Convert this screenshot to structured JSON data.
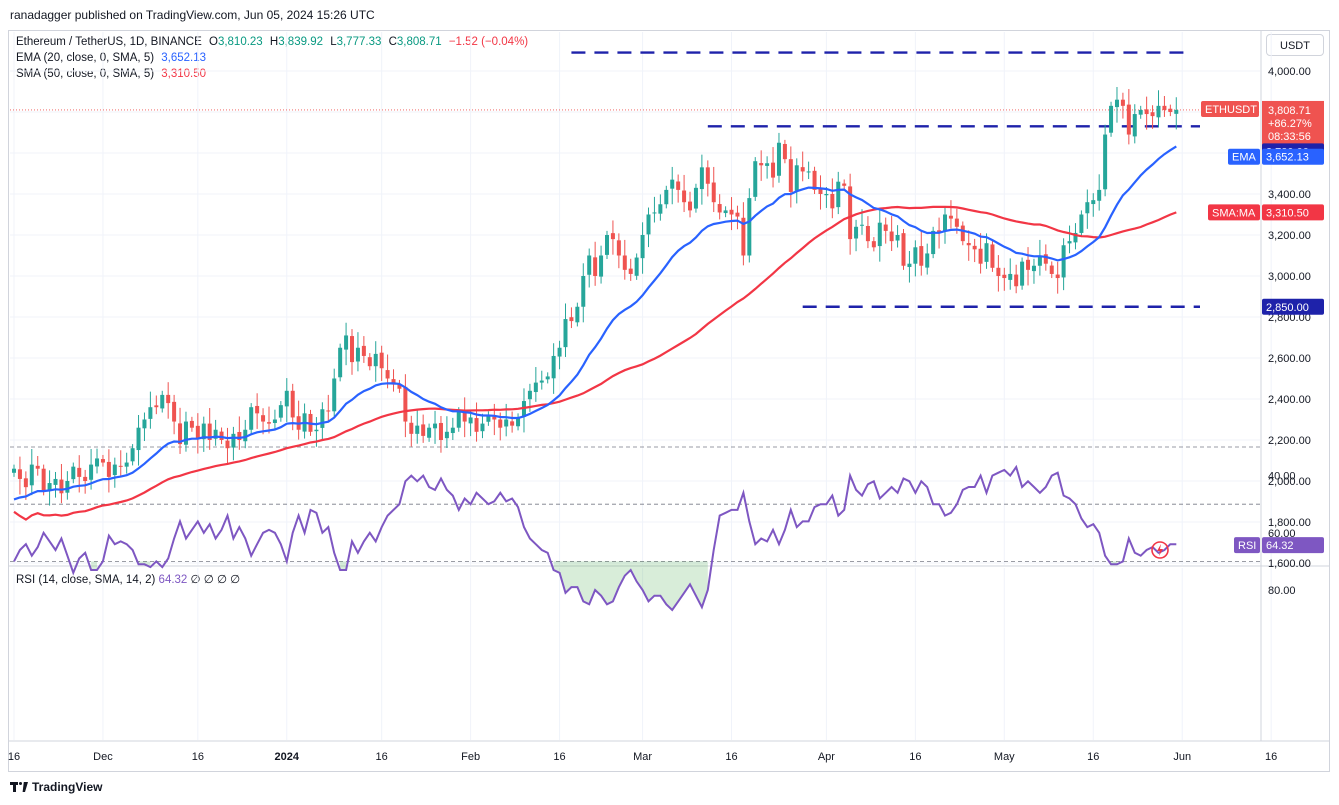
{
  "header": {
    "publisher": "ranadagger published on TradingView.com, Jun 05, 2024 15:26 UTC",
    "unit_button": "USDT"
  },
  "legend": {
    "symbol": "Ethereum / TetherUS, 1D, BINANCE",
    "open_label": "O",
    "open": "3,810.23",
    "high_label": "H",
    "high": "3,839.92",
    "low_label": "L",
    "low": "3,777.33",
    "close_label": "C",
    "close": "3,808.71",
    "change": "−1.52 (−0.04%)",
    "ema_label": "EMA (20, close, 0, SMA, 5)",
    "ema_value": "3,652.13",
    "sma_label": "SMA (50, close, 0, SMA, 5)",
    "sma_value": "3,310.50",
    "rsi_label": "RSI (14, close, SMA, 14, 2)",
    "rsi_value": "64.32",
    "rsi_extra": "∅ ∅ ∅ ∅"
  },
  "price_tags": {
    "symbol_tag": "ETHUSDT",
    "last_price": "3,808.71",
    "change_pct": "+86.27%",
    "countdown": "08:33:56",
    "resistance_tag": "3,730.00",
    "ema_tag": "EMA",
    "ema_price": "3,652.13",
    "sma_tag": "SMA:MA",
    "sma_price": "3,310.50",
    "support_tag": "2,850.00",
    "rsi_tag": "RSI",
    "rsi_price": "64.32"
  },
  "footer": {
    "brand": "TradingView"
  },
  "colors": {
    "up": "#26a69a",
    "down": "#ef5350",
    "ema": "#2962ff",
    "sma": "#f23645",
    "rsi": "#7e57c2",
    "level_line": "#1e22aa",
    "axis_text": "#131722",
    "grid": "#f0f3fa"
  },
  "chart_data": [
    {
      "type": "candlestick",
      "title": "Ethereum / TetherUS, 1D, BINANCE",
      "ylim": [
        1600,
        4200
      ],
      "y_ticks": [
        1600,
        1800,
        2000,
        2200,
        2400,
        2600,
        2800,
        3000,
        3200,
        3400,
        3600,
        3800,
        4000
      ],
      "y_tick_labels": [
        "1,600.00",
        "1,800.00",
        "2,000.00",
        "2,200.00",
        "2,400.00",
        "2,600.00",
        "2,800.00",
        "3,000.00",
        "3,200.00",
        "3,400.00",
        "3,600.00",
        "3,800.00",
        "4,000.00"
      ],
      "x_ticks": [
        0,
        15,
        31,
        46,
        62,
        77,
        92,
        106,
        121,
        137,
        152,
        167,
        182,
        197,
        212
      ],
      "x_tick_labels": [
        "16",
        "Dec",
        "16",
        "2024",
        "16",
        "Feb",
        "16",
        "Mar",
        "16",
        "Apr",
        "16",
        "May",
        "16",
        "Jun",
        "16"
      ],
      "x_tick_bold": [
        false,
        false,
        false,
        true,
        false,
        false,
        false,
        false,
        false,
        false,
        false,
        false,
        false,
        false,
        false
      ],
      "levels": [
        {
          "value": 4090,
          "from": 94,
          "to": 198
        },
        {
          "value": 3730,
          "from": 117,
          "to": 200
        },
        {
          "value": 2850,
          "from": 133,
          "to": 200
        }
      ],
      "close": [
        2060,
        2010,
        1970,
        2080,
        2060,
        1950,
        1990,
        2010,
        1940,
        2000,
        2070,
        2020,
        2000,
        2080,
        2110,
        2090,
        2020,
        2080,
        2070,
        2090,
        2160,
        2260,
        2300,
        2360,
        2360,
        2420,
        2380,
        2290,
        2180,
        2290,
        2260,
        2210,
        2280,
        2200,
        2250,
        2200,
        2160,
        2230,
        2200,
        2250,
        2360,
        2330,
        2290,
        2280,
        2300,
        2370,
        2440,
        2310,
        2250,
        2330,
        2240,
        2250,
        2350,
        2340,
        2500,
        2650,
        2710,
        2580,
        2650,
        2610,
        2560,
        2620,
        2550,
        2500,
        2470,
        2450,
        2290,
        2230,
        2270,
        2220,
        2260,
        2280,
        2200,
        2240,
        2260,
        2340,
        2290,
        2310,
        2240,
        2280,
        2320,
        2300,
        2260,
        2300,
        2270,
        2310,
        2390,
        2440,
        2480,
        2490,
        2510,
        2610,
        2650,
        2790,
        2780,
        2850,
        3000,
        3100,
        3000,
        3100,
        3200,
        3180,
        3100,
        3030,
        3010,
        3090,
        3200,
        3300,
        3310,
        3350,
        3420,
        3470,
        3420,
        3360,
        3320,
        3430,
        3530,
        3450,
        3360,
        3310,
        3320,
        3300,
        3290,
        3100,
        3380,
        3560,
        3540,
        3550,
        3480,
        3650,
        3570,
        3410,
        3540,
        3510,
        3510,
        3420,
        3400,
        3400,
        3330,
        3460,
        3440,
        3180,
        3240,
        3250,
        3170,
        3140,
        3260,
        3220,
        3170,
        3200,
        3050,
        3060,
        3140,
        3050,
        3110,
        3220,
        3210,
        3300,
        3280,
        3240,
        3170,
        3150,
        3130,
        3060,
        3160,
        3040,
        3000,
        2990,
        3010,
        2950,
        3070,
        3030,
        3050,
        3100,
        3060,
        3010,
        2990,
        3150,
        3170,
        3210,
        3300,
        3360,
        3370,
        3420,
        3690,
        3830,
        3860,
        3830,
        3690,
        3790,
        3810,
        3790,
        3780,
        3830,
        3810,
        3800,
        3810
      ],
      "rsi": [
        70,
        66,
        64,
        68,
        65,
        60,
        63,
        66,
        62,
        68,
        74,
        69,
        67,
        73,
        73,
        70,
        61,
        64,
        63,
        64,
        66,
        71,
        71,
        72,
        70,
        72,
        69,
        62,
        56,
        62,
        59,
        56,
        60,
        57,
        62,
        59,
        54,
        62,
        58,
        62,
        68,
        64,
        60,
        59,
        60,
        64,
        70,
        60,
        54,
        60,
        52,
        53,
        60,
        58,
        67,
        73,
        73,
        63,
        67,
        63,
        60,
        63,
        58,
        54,
        52,
        50,
        42,
        40,
        42,
        40,
        44,
        45,
        41,
        45,
        47,
        52,
        48,
        50,
        46,
        48,
        50,
        49,
        46,
        49,
        48,
        51,
        58,
        62,
        64,
        66,
        67,
        73,
        74,
        81,
        79,
        79,
        84,
        85,
        80,
        82,
        85,
        84,
        79,
        75,
        73,
        77,
        80,
        84,
        82,
        82,
        85,
        87,
        84,
        81,
        78,
        82,
        86,
        80,
        66,
        54,
        53,
        52,
        52,
        46,
        56,
        64,
        62,
        63,
        59,
        64,
        59,
        52,
        58,
        56,
        56,
        51,
        50,
        50,
        47,
        54,
        52,
        40,
        45,
        47,
        43,
        42,
        48,
        46,
        44,
        46,
        41,
        42,
        46,
        42,
        44,
        50,
        50,
        54,
        53,
        50,
        45,
        44,
        44,
        40,
        46,
        40,
        39,
        38,
        40,
        37,
        44,
        42,
        44,
        46,
        44,
        40,
        39,
        47,
        48,
        50,
        55,
        58,
        57,
        60,
        68,
        71,
        71,
        70,
        62,
        67,
        68,
        66,
        65,
        67,
        66,
        64,
        64
      ]
    },
    {
      "type": "line",
      "title": "RSI (14, close, SMA, 14, 2)",
      "ylim": [
        28,
        88
      ],
      "y_ticks": [
        40,
        60,
        80
      ],
      "y_tick_labels": [
        "40.00",
        "60.00",
        "80.00"
      ],
      "bands": [
        30,
        50,
        70
      ]
    }
  ]
}
